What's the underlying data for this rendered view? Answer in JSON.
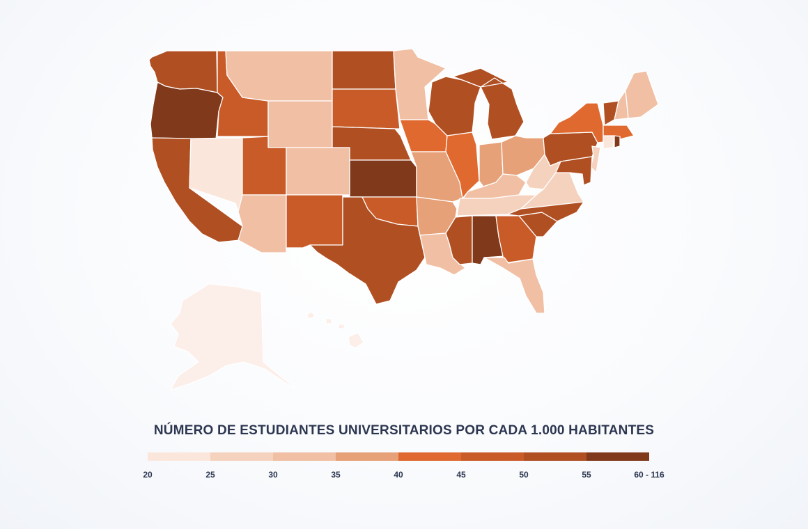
{
  "legend": {
    "title": "NÚMERO DE ESTUDIANTES UNIVERSITARIOS POR CADA 1.000 HABITANTES",
    "bins": [
      {
        "min": 20,
        "max": 25,
        "color": "#fbe6db"
      },
      {
        "min": 25,
        "max": 30,
        "color": "#f5d2be"
      },
      {
        "min": 30,
        "max": 35,
        "color": "#f0bfa4"
      },
      {
        "min": 35,
        "max": 40,
        "color": "#e6a178"
      },
      {
        "min": 40,
        "max": 45,
        "color": "#e0692f"
      },
      {
        "min": 45,
        "max": 50,
        "color": "#c95b28"
      },
      {
        "min": 50,
        "max": 55,
        "color": "#b04f22"
      },
      {
        "min": 55,
        "max": 116,
        "color": "#80391a"
      }
    ],
    "tick_labels": [
      "20",
      "25",
      "30",
      "35",
      "40",
      "45",
      "50",
      "55",
      "60 - 116"
    ]
  },
  "map_data": {
    "type": "choropleth",
    "region": "United States",
    "states": [
      {
        "code": "WA",
        "bin": 6
      },
      {
        "code": "OR",
        "bin": 7
      },
      {
        "code": "CA",
        "bin": 6
      },
      {
        "code": "ID",
        "bin": 5
      },
      {
        "code": "NV",
        "bin": 0
      },
      {
        "code": "MT",
        "bin": 2
      },
      {
        "code": "WY",
        "bin": 2
      },
      {
        "code": "UT",
        "bin": 5
      },
      {
        "code": "AZ",
        "bin": 2
      },
      {
        "code": "CO",
        "bin": 2
      },
      {
        "code": "NM",
        "bin": 5
      },
      {
        "code": "ND",
        "bin": 6
      },
      {
        "code": "SD",
        "bin": 5
      },
      {
        "code": "NE",
        "bin": 6
      },
      {
        "code": "KS",
        "bin": 7
      },
      {
        "code": "OK",
        "bin": 5
      },
      {
        "code": "TX",
        "bin": 6
      },
      {
        "code": "MN",
        "bin": 2
      },
      {
        "code": "IA",
        "bin": 4
      },
      {
        "code": "MO",
        "bin": 3
      },
      {
        "code": "AR",
        "bin": 3
      },
      {
        "code": "LA",
        "bin": 2
      },
      {
        "code": "WI",
        "bin": 6
      },
      {
        "code": "IL",
        "bin": 4
      },
      {
        "code": "MI",
        "bin": 6
      },
      {
        "code": "IN",
        "bin": 3
      },
      {
        "code": "OH",
        "bin": 3
      },
      {
        "code": "KY",
        "bin": 2
      },
      {
        "code": "TN",
        "bin": 1
      },
      {
        "code": "MS",
        "bin": 6
      },
      {
        "code": "AL",
        "bin": 7
      },
      {
        "code": "GA",
        "bin": 5
      },
      {
        "code": "FL",
        "bin": 2
      },
      {
        "code": "SC",
        "bin": 6
      },
      {
        "code": "NC",
        "bin": 6
      },
      {
        "code": "VA",
        "bin": 1
      },
      {
        "code": "WV",
        "bin": 1
      },
      {
        "code": "PA",
        "bin": 6
      },
      {
        "code": "NY",
        "bin": 4
      },
      {
        "code": "VT",
        "bin": 6
      },
      {
        "code": "NH",
        "bin": 2
      },
      {
        "code": "ME",
        "bin": 2
      },
      {
        "code": "MA",
        "bin": 4
      },
      {
        "code": "CT",
        "bin": 0
      },
      {
        "code": "RI",
        "bin": 7
      },
      {
        "code": "NJ",
        "bin": 1
      },
      {
        "code": "DE",
        "bin": 0
      },
      {
        "code": "MD",
        "bin": 6
      },
      {
        "code": "AK",
        "bin": -1
      },
      {
        "code": "HI",
        "bin": -1
      }
    ]
  }
}
